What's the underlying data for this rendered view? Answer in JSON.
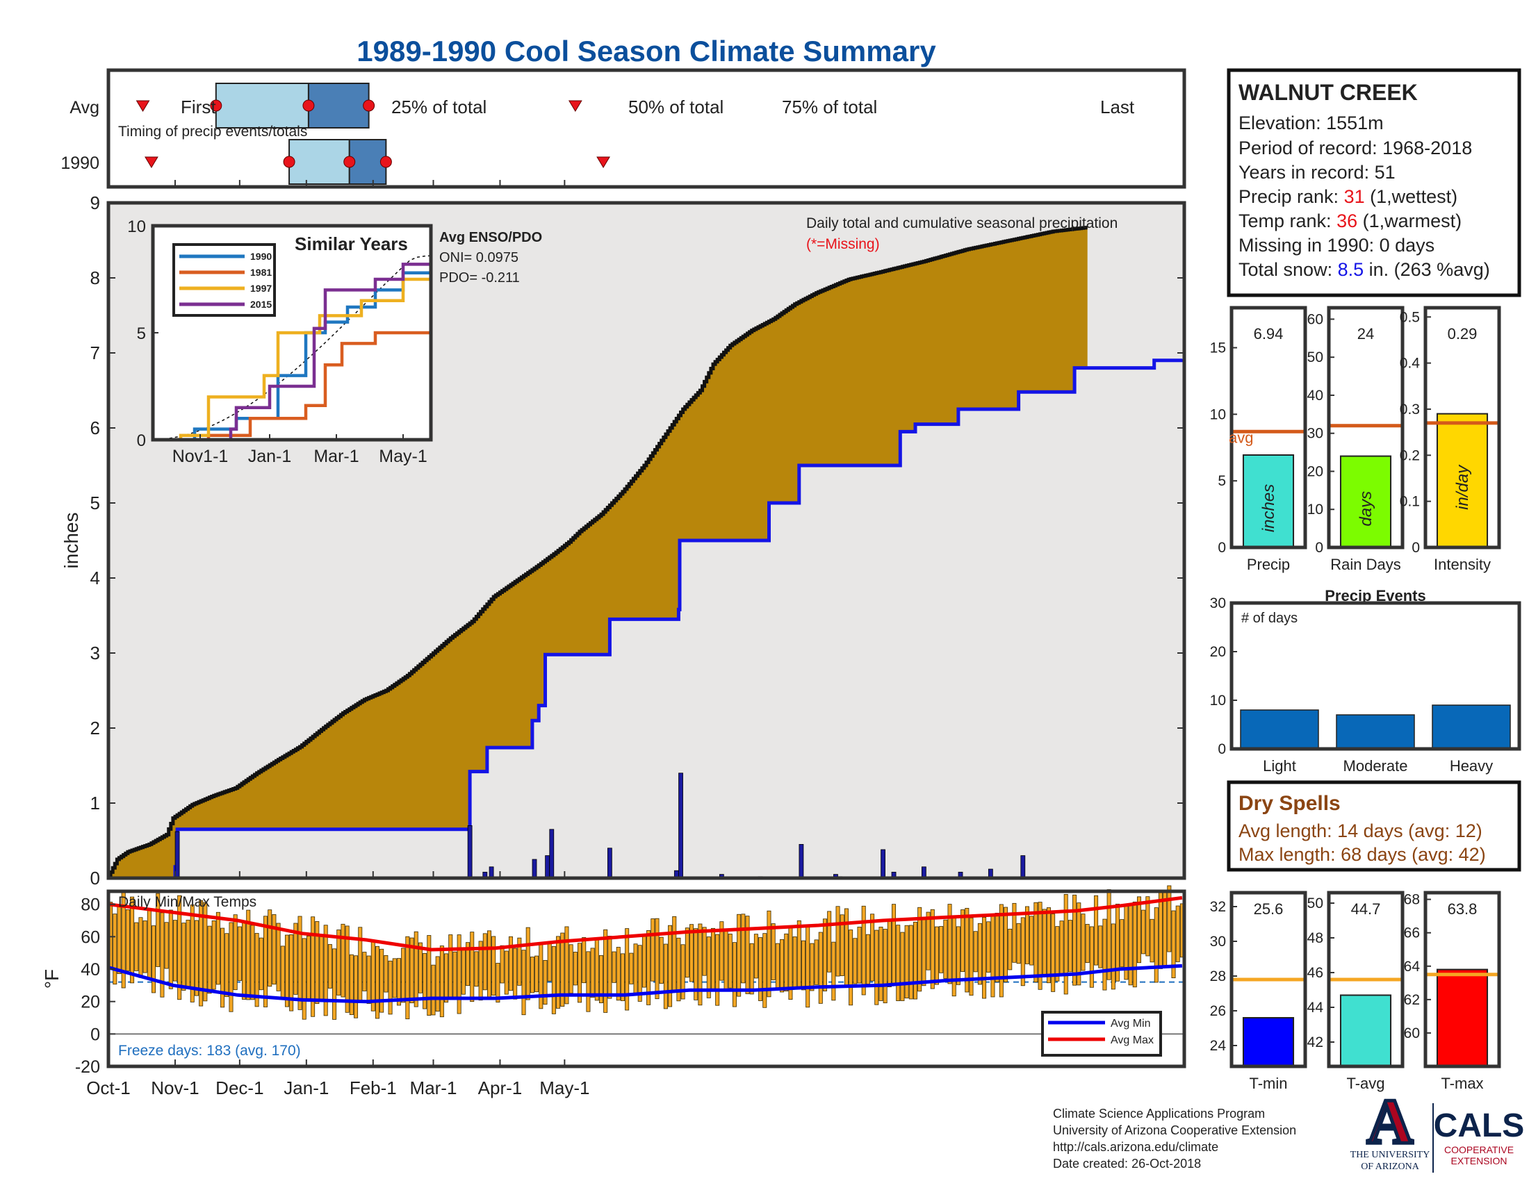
{
  "title": "1989-1990 Cool Season Climate Summary",
  "timing": {
    "row_avg_label": "Avg",
    "row_year_label": "1990",
    "note": "Timing of precip events/totals",
    "first_label": "First",
    "last_label": "Last",
    "p25_label": "25% of total",
    "p50_label": "50% of total",
    "p75_label": "75% of total",
    "avg": {
      "first": 16,
      "p25": 50,
      "p50": 93,
      "p75": 121,
      "last": 217
    },
    "year": {
      "first": 20,
      "p25": 84,
      "p50": 112,
      "p75": 129,
      "last": 230
    },
    "colors": {
      "light": "#abd5e6",
      "dark": "#4a7fb6",
      "marker": "#e8141b"
    }
  },
  "station": {
    "name": "WALNUT CREEK",
    "elevation": "Elevation: 1551m",
    "period": "Period of record: 1968-2018",
    "years": "Years in record: 51",
    "precip_rank_prefix": "Precip rank: ",
    "precip_rank": "31",
    "precip_rank_suffix": " (1,wettest)",
    "temp_rank_prefix": "Temp rank: ",
    "temp_rank": "36",
    "temp_rank_suffix": " (1,warmest)",
    "missing": "Missing in 1990: 0 days",
    "snow_prefix": "Total snow: ",
    "snow_value": "8.5",
    "snow_suffix": " in. (263 %avg)"
  },
  "precip_panel": {
    "ylabel": "inches",
    "legend_line1": "Daily total and cumulative seasonal precipitation",
    "legend_line2": "(*=Missing)",
    "yticks": [
      "0",
      "1",
      "2",
      "3",
      "4",
      "5",
      "6",
      "7",
      "8",
      "9"
    ],
    "fill_color": "#b8860b",
    "bg_color": "#e8e7e6"
  },
  "similar_years": {
    "title": "Similar Years",
    "enso_title": "Avg ENSO/PDO",
    "oni": "ONI= 0.0975",
    "pdo": "PDO= -0.211",
    "xticks": [
      "Nov1-1",
      "Jan-1",
      "Mar-1",
      "May-1"
    ],
    "yticks": [
      "0",
      "5",
      "10"
    ],
    "legend": [
      {
        "name": "1990",
        "color": "#1f77c0"
      },
      {
        "name": "1981",
        "color": "#d95d20"
      },
      {
        "name": "1997",
        "color": "#eeb020"
      },
      {
        "name": "2015",
        "color": "#7b2f91"
      }
    ]
  },
  "temp_panel": {
    "title": "Daily Min/Max Temps",
    "ylabel": "°F",
    "yticks": [
      "-20",
      "0",
      "20",
      "40",
      "60",
      "80"
    ],
    "freeze": "Freeze days: 183 (avg. 170)",
    "legend_min": "Avg Min",
    "legend_max": "Avg Max",
    "bar_color": "#f3a623"
  },
  "months": [
    "Oct-1",
    "Nov-1",
    "Dec-1",
    "Jan-1",
    "Feb-1",
    "Mar-1",
    "Apr-1",
    "May-1"
  ],
  "bars_top": [
    {
      "label": "Precip",
      "value_label": "6.94",
      "unit": "inches",
      "yticks": [
        "0",
        "5",
        "10",
        "15"
      ],
      "avg_label": "avg",
      "color": "#40e0d0"
    },
    {
      "label": "Rain Days",
      "value_label": "24",
      "unit": "days",
      "yticks": [
        "0",
        "10",
        "20",
        "30",
        "40",
        "50",
        "60"
      ],
      "avg_label": "",
      "color": "#7cfc00"
    },
    {
      "label": "Intensity",
      "value_label": "0.29",
      "unit": "in/day",
      "yticks": [
        "0",
        "0.1",
        "0.2",
        "0.3",
        "0.4",
        "0.5"
      ],
      "avg_label": "",
      "color": "#ffd700"
    }
  ],
  "precip_events": {
    "title": "Precip Events",
    "ylabel": "# of days",
    "yticks": [
      "0",
      "10",
      "20",
      "30"
    ],
    "categories": [
      "Light",
      "Moderate",
      "Heavy"
    ],
    "color": "#0868b8"
  },
  "dry_spells": {
    "title": "Dry Spells",
    "avg": "Avg length: 14 days (avg: 12)",
    "max": "Max length: 68 days (avg: 42)"
  },
  "bars_bottom": [
    {
      "label": "T-min",
      "value_label": "25.6",
      "yticks": [
        "24",
        "26",
        "28",
        "30",
        "32"
      ],
      "color": "#0000ff"
    },
    {
      "label": "T-avg",
      "value_label": "44.7",
      "yticks": [
        "42",
        "44",
        "46",
        "48",
        "50"
      ],
      "color": "#40e0d0"
    },
    {
      "label": "T-max",
      "value_label": "63.8",
      "yticks": [
        "60",
        "62",
        "64",
        "66",
        "68"
      ],
      "color": "#ff0000"
    }
  ],
  "footer": {
    "line1": "Climate Science Applications Program",
    "line2": "University of Arizona Cooperative Extension",
    "line3": "http://cals.arizona.edu/climate",
    "line4": " Date created: 26-Oct-2018",
    "ua_line1": "THE UNIVERSITY",
    "ua_line2": "OF ARIZONA",
    "cals": "CALS",
    "cals_line1": "COOPERATIVE",
    "cals_line2": "EXTENSION"
  },
  "chart_data": [
    {
      "type": "area",
      "name": "cumulative precipitation",
      "x_unit": "day of season (0 = Oct-1)",
      "ylabel": "inches",
      "ylim": [
        0,
        9
      ],
      "cumulative_1990": [
        [
          0,
          0
        ],
        [
          2,
          0.08
        ],
        [
          5,
          0.25
        ],
        [
          10,
          0.35
        ],
        [
          20,
          0.45
        ],
        [
          28,
          0.58
        ],
        [
          31,
          0.8
        ],
        [
          40,
          0.98
        ],
        [
          50,
          1.1
        ],
        [
          60,
          1.2
        ],
        [
          70,
          1.4
        ],
        [
          80,
          1.58
        ],
        [
          90,
          1.75
        ],
        [
          100,
          1.98
        ],
        [
          110,
          2.2
        ],
        [
          120,
          2.38
        ],
        [
          130,
          2.5
        ],
        [
          140,
          2.7
        ],
        [
          150,
          2.95
        ],
        [
          160,
          3.2
        ],
        [
          170,
          3.42
        ],
        [
          180,
          3.75
        ],
        [
          190,
          3.95
        ],
        [
          200,
          4.15
        ],
        [
          208,
          4.32
        ],
        [
          215,
          4.48
        ],
        [
          220,
          4.62
        ],
        [
          230,
          4.85
        ],
        [
          240,
          5.15
        ],
        [
          250,
          5.5
        ],
        [
          256,
          5.75
        ],
        [
          262,
          6.0
        ],
        [
          268,
          6.25
        ],
        [
          276,
          6.5
        ],
        [
          282,
          6.85
        ],
        [
          290,
          7.1
        ],
        [
          300,
          7.3
        ],
        [
          310,
          7.45
        ],
        [
          320,
          7.65
        ],
        [
          330,
          7.8
        ],
        [
          345,
          7.98
        ],
        [
          360,
          8.08
        ],
        [
          380,
          8.22
        ],
        [
          400,
          8.38
        ],
        [
          420,
          8.5
        ],
        [
          440,
          8.62
        ],
        [
          455,
          8.67
        ]
      ],
      "average_cumulative": [
        [
          0,
          0
        ],
        [
          31,
          0.15
        ],
        [
          32,
          0.65
        ],
        [
          167,
          0.65
        ],
        [
          168,
          1.42
        ],
        [
          176,
          1.74
        ],
        [
          196,
          1.74
        ],
        [
          197,
          2.1
        ],
        [
          200,
          2.3
        ],
        [
          203,
          2.98
        ],
        [
          232,
          2.98
        ],
        [
          233,
          3.45
        ],
        [
          264,
          3.45
        ],
        [
          265,
          3.58
        ],
        [
          265.5,
          4.5
        ],
        [
          307,
          5.0
        ],
        [
          320,
          5.0
        ],
        [
          321,
          5.5
        ],
        [
          367,
          5.5
        ],
        [
          368,
          5.95
        ],
        [
          375,
          6.05
        ],
        [
          394,
          6.05
        ],
        [
          395,
          6.25
        ],
        [
          422,
          6.25
        ],
        [
          423,
          6.48
        ],
        [
          448,
          6.48
        ],
        [
          449,
          6.8
        ],
        [
          485,
          6.8
        ],
        [
          486,
          6.9
        ],
        [
          499,
          6.92
        ]
      ],
      "daily_bars": [
        [
          32,
          0.62
        ],
        [
          168,
          0.7
        ],
        [
          175,
          0.08
        ],
        [
          178,
          0.15
        ],
        [
          198,
          0.25
        ],
        [
          204,
          0.3
        ],
        [
          206,
          0.65
        ],
        [
          233,
          0.4
        ],
        [
          264,
          0.1
        ],
        [
          266,
          1.4
        ],
        [
          285,
          0.05
        ],
        [
          303,
          0.02
        ],
        [
          322,
          0.45
        ],
        [
          338,
          0.05
        ],
        [
          340,
          0.02
        ],
        [
          360,
          0.38
        ],
        [
          365,
          0.08
        ],
        [
          379,
          0.15
        ],
        [
          396,
          0.08
        ],
        [
          410,
          0.12
        ],
        [
          425,
          0.3
        ]
      ]
    },
    {
      "type": "line",
      "name": "Similar Years",
      "x_unit": "season fraction",
      "ylim": [
        0,
        10
      ],
      "series": [
        {
          "name": "1990",
          "values": [
            [
              0,
              0
            ],
            [
              0.15,
              0.5
            ],
            [
              0.3,
              1.0
            ],
            [
              0.45,
              3.0
            ],
            [
              0.55,
              5.0
            ],
            [
              0.62,
              5.5
            ],
            [
              0.7,
              6.2
            ],
            [
              0.8,
              7.0
            ],
            [
              0.9,
              7.8
            ],
            [
              1.0,
              8.2
            ]
          ]
        },
        {
          "name": "1981",
          "values": [
            [
              0,
              0
            ],
            [
              0.2,
              0.2
            ],
            [
              0.35,
              1.0
            ],
            [
              0.55,
              1.6
            ],
            [
              0.62,
              3.5
            ],
            [
              0.68,
              4.5
            ],
            [
              0.8,
              5.0
            ],
            [
              1.0,
              5.3
            ]
          ]
        },
        {
          "name": "1997",
          "values": [
            [
              0,
              0
            ],
            [
              0.1,
              0.2
            ],
            [
              0.2,
              2.0
            ],
            [
              0.4,
              3.0
            ],
            [
              0.45,
              5.0
            ],
            [
              0.6,
              5.8
            ],
            [
              0.75,
              6.5
            ],
            [
              0.9,
              7.5
            ],
            [
              1.0,
              8.0
            ]
          ]
        },
        {
          "name": "2015",
          "values": [
            [
              0,
              0
            ],
            [
              0.28,
              0.5
            ],
            [
              0.3,
              1.5
            ],
            [
              0.42,
              2.5
            ],
            [
              0.58,
              5.2
            ],
            [
              0.62,
              7.0
            ],
            [
              0.8,
              7.5
            ],
            [
              0.9,
              8.2
            ],
            [
              1.0,
              8.5
            ]
          ]
        }
      ]
    },
    {
      "type": "bar",
      "name": "Daily Min/Max Temps",
      "ylabel": "°F",
      "ylim": [
        -20,
        88
      ],
      "avg_min": [
        [
          0,
          41
        ],
        [
          30,
          30
        ],
        [
          60,
          24
        ],
        [
          90,
          21
        ],
        [
          120,
          20
        ],
        [
          150,
          22
        ],
        [
          180,
          22
        ],
        [
          210,
          24
        ],
        [
          240,
          24
        ],
        [
          270,
          27
        ],
        [
          300,
          27
        ],
        [
          330,
          29
        ],
        [
          360,
          30
        ],
        [
          390,
          33
        ],
        [
          420,
          35
        ],
        [
          450,
          37
        ],
        [
          470,
          40
        ],
        [
          499,
          42
        ]
      ],
      "avg_max": [
        [
          0,
          80
        ],
        [
          30,
          75
        ],
        [
          60,
          70
        ],
        [
          90,
          62
        ],
        [
          120,
          58
        ],
        [
          150,
          52
        ],
        [
          180,
          53
        ],
        [
          210,
          57
        ],
        [
          240,
          60
        ],
        [
          270,
          63
        ],
        [
          300,
          65
        ],
        [
          330,
          67
        ],
        [
          360,
          70
        ],
        [
          390,
          72
        ],
        [
          420,
          74
        ],
        [
          450,
          76
        ],
        [
          470,
          79
        ],
        [
          499,
          84
        ]
      ]
    },
    {
      "type": "bar",
      "name": "Precip",
      "categories": [
        "Precip"
      ],
      "values": [
        6.94
      ],
      "avg": 8.7,
      "ylim": [
        0,
        18
      ]
    },
    {
      "type": "bar",
      "name": "Rain Days",
      "categories": [
        "Rain Days"
      ],
      "values": [
        24
      ],
      "avg": 32,
      "ylim": [
        0,
        63
      ]
    },
    {
      "type": "bar",
      "name": "Intensity",
      "categories": [
        "Intensity"
      ],
      "values": [
        0.29
      ],
      "avg": 0.27,
      "ylim": [
        0,
        0.52
      ]
    },
    {
      "type": "bar",
      "name": "Precip Events",
      "categories": [
        "Light",
        "Moderate",
        "Heavy"
      ],
      "values": [
        8,
        7,
        9
      ],
      "ylim": [
        0,
        30
      ]
    },
    {
      "type": "bar",
      "name": "T-min",
      "categories": [
        "T-min"
      ],
      "values": [
        25.6
      ],
      "avg": 27.8,
      "ylim": [
        22.8,
        32.8
      ]
    },
    {
      "type": "bar",
      "name": "T-avg",
      "categories": [
        "T-avg"
      ],
      "values": [
        44.7
      ],
      "avg": 45.6,
      "ylim": [
        40.6,
        50.6
      ]
    },
    {
      "type": "bar",
      "name": "T-max",
      "categories": [
        "T-max"
      ],
      "values": [
        63.8
      ],
      "avg": 63.5,
      "ylim": [
        58.0,
        68.4
      ]
    }
  ]
}
